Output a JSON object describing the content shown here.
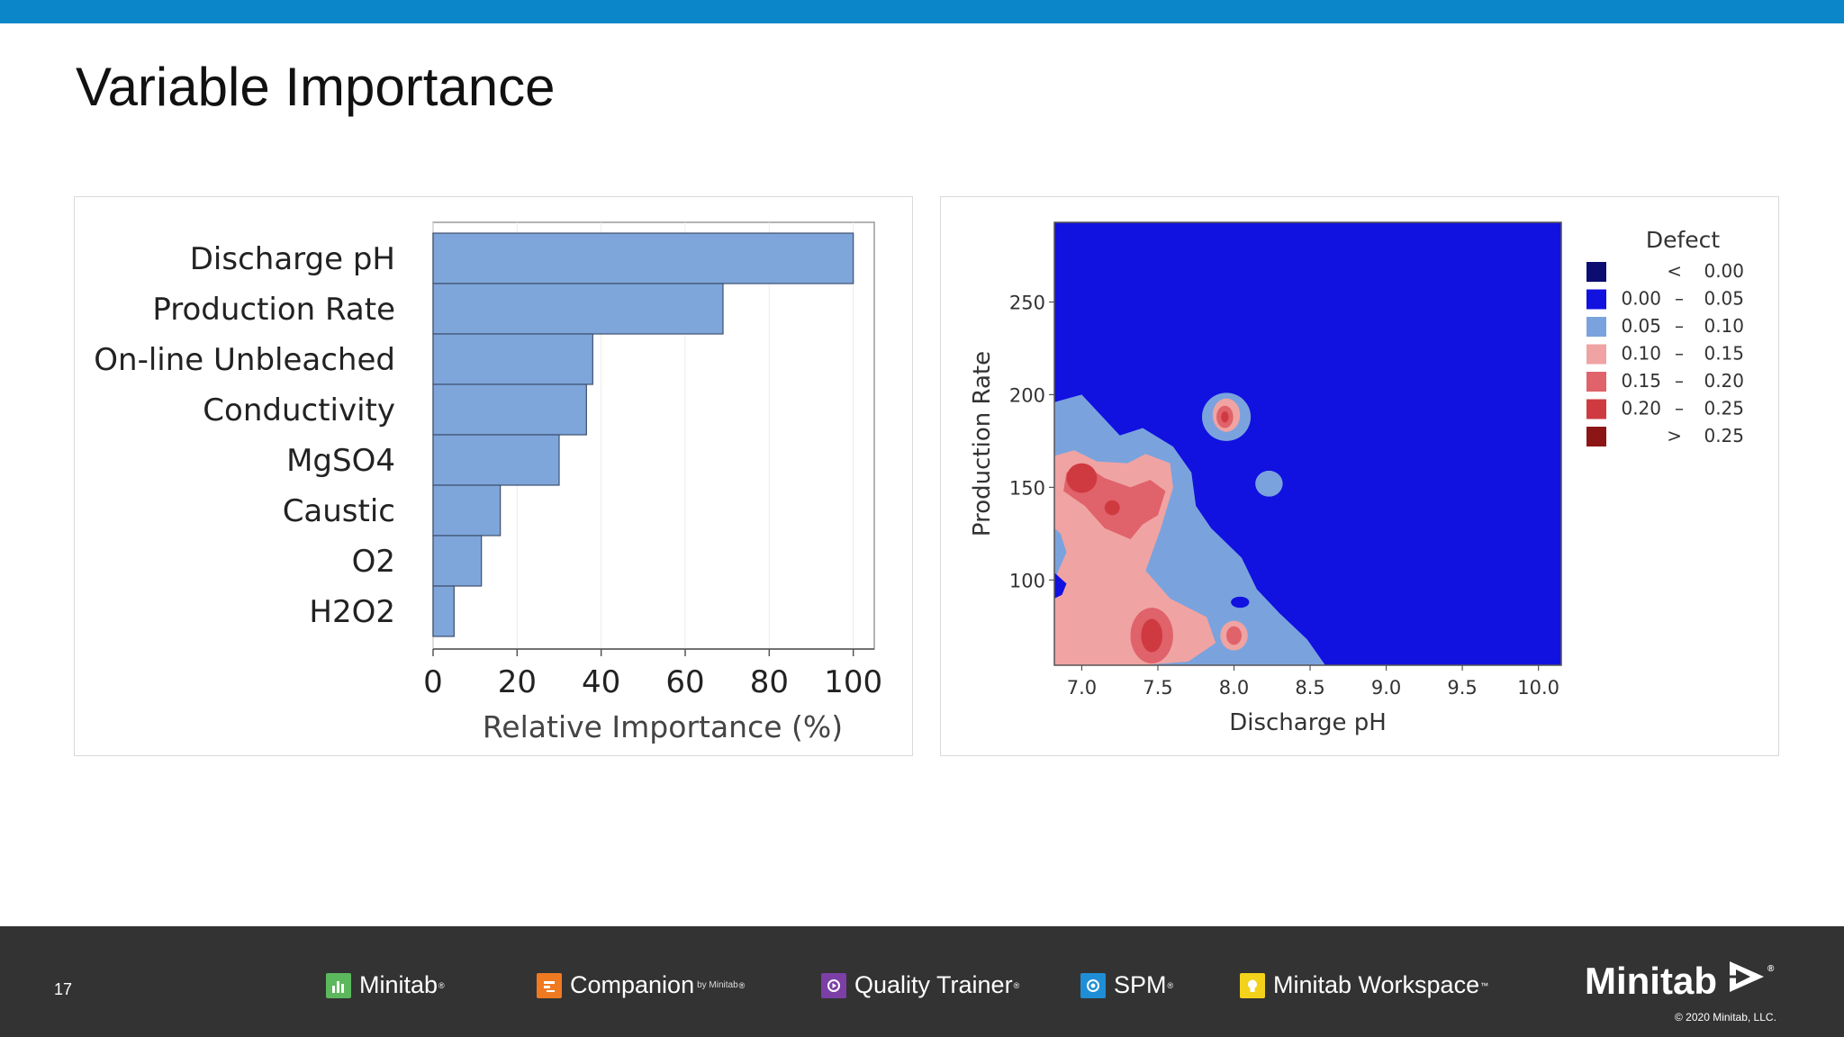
{
  "slide": {
    "title": "Variable Importance",
    "number": "17"
  },
  "colors": {
    "accent": "#0b86c8",
    "footer_bg": "#333333",
    "bar_fill": "#7ea6da",
    "bar_stroke": "#3f4f6e"
  },
  "chart_data": [
    {
      "type": "bar",
      "orientation": "horizontal",
      "categories": [
        "Discharge pH",
        "Production Rate",
        "On-line Unbleached",
        "Conductivity",
        "MgSO4",
        "Caustic",
        "O2",
        "H2O2"
      ],
      "values": [
        100,
        69,
        38,
        36.5,
        30,
        16,
        11.5,
        5
      ],
      "title": "",
      "xlabel": "Relative Importance (%)",
      "ylabel": "",
      "xlim": [
        0,
        105
      ],
      "xticks": [
        "0",
        "20",
        "40",
        "60",
        "80",
        "100"
      ],
      "grid": true
    },
    {
      "type": "contour",
      "xlabel": "Discharge pH",
      "ylabel": "Production Rate",
      "xticks": [
        "7.0",
        "7.5",
        "8.0",
        "8.5",
        "9.0",
        "9.5",
        "10.0"
      ],
      "yticks": [
        "100",
        "150",
        "200",
        "250"
      ],
      "xlim": [
        6.82,
        10.15
      ],
      "ylim": [
        54,
        293
      ],
      "legend": {
        "title": "Defect",
        "placement": "right",
        "entries": [
          {
            "low": "<",
            "high": "0.00",
            "color": "#0b0d70"
          },
          {
            "low": "0.00",
            "high": "0.05",
            "color": "#1111e0"
          },
          {
            "low": "0.05",
            "high": "0.10",
            "color": "#7aa3dd"
          },
          {
            "low": "0.10",
            "high": "0.15",
            "color": "#f0a3a3"
          },
          {
            "low": "0.15",
            "high": "0.20",
            "color": "#e0626a"
          },
          {
            "low": "0.20",
            "high": "0.25",
            "color": "#cf3a40"
          },
          {
            "low": ">",
            "high": "0.25",
            "color": "#8c1515"
          }
        ],
        "dash": "–"
      },
      "regions": [
        {
          "level": "0.05 – 0.10",
          "color": "#7aa3dd",
          "points": [
            [
              6.82,
              196
            ],
            [
              7.0,
              200
            ],
            [
              7.25,
              178
            ],
            [
              7.4,
              182
            ],
            [
              7.6,
              172
            ],
            [
              7.72,
              158
            ],
            [
              7.75,
              140
            ],
            [
              7.85,
              128
            ],
            [
              8.05,
              112
            ],
            [
              8.15,
              95
            ],
            [
              8.3,
              82
            ],
            [
              8.48,
              68
            ],
            [
              8.6,
              54
            ],
            [
              6.82,
              54
            ]
          ]
        },
        {
          "level": "0.05 – 0.10",
          "color": "#7aa3dd",
          "ellipse": [
            7.95,
            188,
            0.16,
            13
          ]
        },
        {
          "level": "0.05 – 0.10",
          "color": "#7aa3dd",
          "ellipse": [
            8.23,
            152,
            0.09,
            7
          ]
        },
        {
          "level": "0.10 – 0.15",
          "color": "#f0a3a3",
          "points": [
            [
              6.82,
              167
            ],
            [
              6.95,
              170
            ],
            [
              7.1,
              164
            ],
            [
              7.3,
              163
            ],
            [
              7.42,
              168
            ],
            [
              7.58,
              163
            ],
            [
              7.6,
              150
            ],
            [
              7.52,
              128
            ],
            [
              7.42,
              105
            ],
            [
              7.58,
              90
            ],
            [
              7.82,
              80
            ],
            [
              7.88,
              66
            ],
            [
              7.7,
              56
            ],
            [
              7.4,
              54
            ],
            [
              6.82,
              54
            ],
            [
              6.82,
              100
            ],
            [
              6.9,
              115
            ],
            [
              6.86,
              125
            ],
            [
              6.82,
              128
            ]
          ]
        },
        {
          "level": "0.10 – 0.15",
          "color": "#f0a3a3",
          "ellipse": [
            7.95,
            189,
            0.09,
            9
          ]
        },
        {
          "level": "0.10 – 0.15",
          "color": "#f0a3a3",
          "ellipse": [
            8.0,
            70,
            0.09,
            8
          ]
        },
        {
          "level": "0.15 – 0.20",
          "color": "#e0626a",
          "points": [
            [
              6.9,
              158
            ],
            [
              7.02,
              162
            ],
            [
              7.15,
              155
            ],
            [
              7.32,
              150
            ],
            [
              7.45,
              154
            ],
            [
              7.55,
              148
            ],
            [
              7.5,
              135
            ],
            [
              7.4,
              130
            ],
            [
              7.32,
              122
            ],
            [
              7.15,
              128
            ],
            [
              7.02,
              140
            ],
            [
              6.88,
              148
            ]
          ]
        },
        {
          "level": "0.15 – 0.20",
          "color": "#e0626a",
          "ellipse": [
            7.46,
            70,
            0.14,
            15
          ]
        },
        {
          "level": "0.15 – 0.20",
          "color": "#e0626a",
          "ellipse": [
            7.94,
            188,
            0.055,
            6
          ]
        },
        {
          "level": "0.15 – 0.20",
          "color": "#e0626a",
          "ellipse": [
            8.0,
            70,
            0.05,
            5
          ]
        },
        {
          "level": "0.20 – 0.25",
          "color": "#cf3a40",
          "ellipse": [
            7.0,
            155,
            0.1,
            8
          ]
        },
        {
          "level": "0.20 – 0.25",
          "color": "#cf3a40",
          "ellipse": [
            7.46,
            70,
            0.07,
            9
          ]
        },
        {
          "level": "0.20 – 0.25",
          "color": "#cf3a40",
          "ellipse": [
            7.2,
            139,
            0.05,
            4
          ]
        },
        {
          "level": "0.20 – 0.25",
          "color": "#cf3a40",
          "ellipse": [
            7.94,
            188,
            0.025,
            3
          ]
        },
        {
          "level": "0.00 – 0.05",
          "color": "#1111e0",
          "points": [
            [
              6.82,
              104
            ],
            [
              6.9,
              98
            ],
            [
              6.87,
              92
            ],
            [
              6.82,
              90
            ]
          ]
        },
        {
          "level": "0.00 – 0.05",
          "color": "#1111e0",
          "ellipse": [
            8.04,
            88,
            0.06,
            3
          ]
        }
      ]
    }
  ],
  "footer": {
    "products": [
      {
        "name": "Minitab",
        "mark": "®",
        "icon": "bar-chart-icon",
        "icon_color": "#5cb85c"
      },
      {
        "name": "Companion",
        "suffix": "by Minitab",
        "mark": "®",
        "icon": "companion-icon",
        "icon_color": "#f07a22"
      },
      {
        "name": "Quality Trainer",
        "mark": "®",
        "icon": "play-icon",
        "icon_color": "#7b3fa6"
      },
      {
        "name": "SPM",
        "mark": "®",
        "icon": "spm-icon",
        "icon_color": "#1f8ed6"
      },
      {
        "name": "Minitab Workspace",
        "mark": "™",
        "icon": "lightbulb-icon",
        "icon_color": "#f3d21b"
      }
    ],
    "brand": "Minitab",
    "brand_mark": "®",
    "copyright": "© 2020 Minitab, LLC."
  }
}
